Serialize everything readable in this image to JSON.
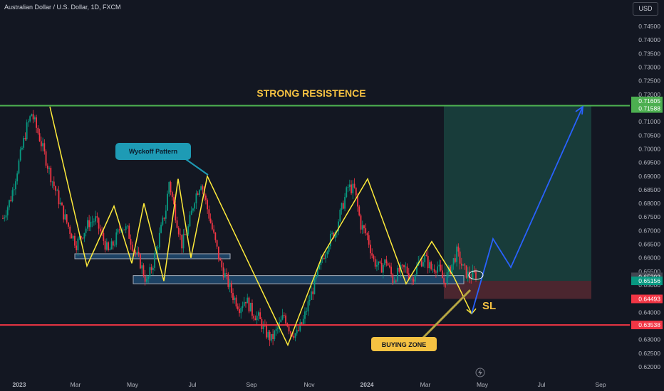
{
  "header": {
    "symbol_title": "Australian Dollar / U.S. Dollar, 1D, FXCM"
  },
  "currency_button": {
    "label": "USD"
  },
  "chart_data": {
    "type": "candlestick",
    "title": "Australian Dollar / U.S. Dollar, 1D, FXCM",
    "ylim": [
      0.6185,
      0.7495
    ],
    "yticks": [
      "0.74500",
      "0.74000",
      "0.73500",
      "0.73000",
      "0.72500",
      "0.72000",
      "0.71500",
      "0.71000",
      "0.70500",
      "0.70000",
      "0.69500",
      "0.69000",
      "0.68500",
      "0.68000",
      "0.67500",
      "0.67000",
      "0.66500",
      "0.66000",
      "0.65500",
      "0.65000",
      "0.64500",
      "0.64000",
      "0.63500",
      "0.63000",
      "0.62500",
      "0.62000"
    ],
    "xticks": [
      "2023",
      "Mar",
      "May",
      "Jul",
      "Sep",
      "Nov",
      "2024",
      "Mar",
      "May",
      "Jul",
      "Sep"
    ],
    "price_labels": [
      {
        "text": "0.71605",
        "value": 0.71605,
        "color": "#4caf50"
      },
      {
        "text": "0.71588",
        "value": 0.71588,
        "color": "#4caf50"
      },
      {
        "text": "0.65303",
        "value": 0.65303,
        "color": "#434651"
      },
      {
        "text": "0.65156",
        "value": 0.65156,
        "color": "#089981"
      },
      {
        "text": "0.64493",
        "value": 0.64493,
        "color": "#f23645"
      },
      {
        "text": "0.63538",
        "value": 0.63538,
        "color": "#f23645"
      }
    ],
    "resistance_level": 0.71588,
    "support_level": 0.63538,
    "price_path": [
      [
        0,
        0.6745
      ],
      [
        5,
        0.682
      ],
      [
        10,
        0.695
      ],
      [
        15,
        0.708
      ],
      [
        18,
        0.713
      ],
      [
        22,
        0.706
      ],
      [
        26,
        0.698
      ],
      [
        30,
        0.69
      ],
      [
        34,
        0.683
      ],
      [
        38,
        0.676
      ],
      [
        42,
        0.67
      ],
      [
        46,
        0.665
      ],
      [
        50,
        0.669
      ],
      [
        54,
        0.673
      ],
      [
        58,
        0.674
      ],
      [
        62,
        0.668
      ],
      [
        66,
        0.662
      ],
      [
        70,
        0.666
      ],
      [
        74,
        0.672
      ],
      [
        78,
        0.67
      ],
      [
        82,
        0.663
      ],
      [
        86,
        0.658
      ],
      [
        90,
        0.651
      ],
      [
        94,
        0.658
      ],
      [
        98,
        0.668
      ],
      [
        102,
        0.678
      ],
      [
        104,
        0.688
      ],
      [
        108,
        0.676
      ],
      [
        112,
        0.665
      ],
      [
        116,
        0.671
      ],
      [
        120,
        0.682
      ],
      [
        124,
        0.688
      ],
      [
        128,
        0.678
      ],
      [
        132,
        0.668
      ],
      [
        136,
        0.658
      ],
      [
        140,
        0.652
      ],
      [
        144,
        0.646
      ],
      [
        148,
        0.642
      ],
      [
        152,
        0.645
      ],
      [
        156,
        0.64
      ],
      [
        160,
        0.638
      ],
      [
        164,
        0.633
      ],
      [
        168,
        0.63
      ],
      [
        172,
        0.634
      ],
      [
        176,
        0.639
      ],
      [
        180,
        0.633
      ],
      [
        184,
        0.632
      ],
      [
        188,
        0.637
      ],
      [
        192,
        0.645
      ],
      [
        196,
        0.652
      ],
      [
        200,
        0.66
      ],
      [
        204,
        0.666
      ],
      [
        208,
        0.67
      ],
      [
        212,
        0.678
      ],
      [
        216,
        0.686
      ],
      [
        220,
        0.685
      ],
      [
        224,
        0.672
      ],
      [
        228,
        0.668
      ],
      [
        232,
        0.659
      ],
      [
        236,
        0.656
      ],
      [
        240,
        0.659
      ],
      [
        244,
        0.652
      ],
      [
        248,
        0.655
      ],
      [
        252,
        0.656
      ],
      [
        256,
        0.652
      ],
      [
        260,
        0.658
      ],
      [
        264,
        0.66
      ],
      [
        268,
        0.656
      ],
      [
        272,
        0.657
      ],
      [
        276,
        0.651
      ],
      [
        280,
        0.656
      ],
      [
        284,
        0.662
      ],
      [
        288,
        0.656
      ],
      [
        292,
        0.653
      ],
      [
        296,
        0.654
      ]
    ],
    "annotations": {
      "strong_resistance": "STRONG RESISTENCE",
      "wyckoff_pattern": "Wyckoff Pattern",
      "buying_zone": "BUYING ZONE",
      "stop_loss": "SL"
    },
    "wyckoff_zigzag": [
      [
        0.7155
      ],
      [
        0.657
      ],
      [
        0.679
      ],
      [
        0.658
      ],
      [
        0.68
      ],
      [
        0.6515
      ],
      [
        0.689
      ],
      [
        0.66
      ],
      [
        0.69
      ],
      [
        0.628
      ],
      [
        0.6605
      ],
      [
        0.689
      ],
      [
        0.6505
      ],
      [
        0.666
      ],
      [
        0.653
      ],
      [
        0.6395
      ]
    ],
    "projection_path": [
      [
        0.6395
      ],
      [
        0.667
      ],
      [
        0.6565
      ],
      [
        0.7155
      ]
    ],
    "trade_box": {
      "entry": 0.65156,
      "target": 0.71588,
      "stop": 0.64493
    },
    "zones": [
      {
        "name": "upper-demand-zone",
        "top": 0.6615,
        "bottom": 0.66
      },
      {
        "name": "lower-demand-zone",
        "top": 0.6535,
        "bottom": 0.6505
      }
    ],
    "colors": {
      "background": "#131722",
      "bull": "#089981",
      "bear": "#f23645",
      "resistance": "#4caf50",
      "support": "#f23645",
      "zigzag": "#ffeb3b",
      "projection": "#2962ff",
      "label_gold": "#f5c242"
    },
    "grid": false
  }
}
